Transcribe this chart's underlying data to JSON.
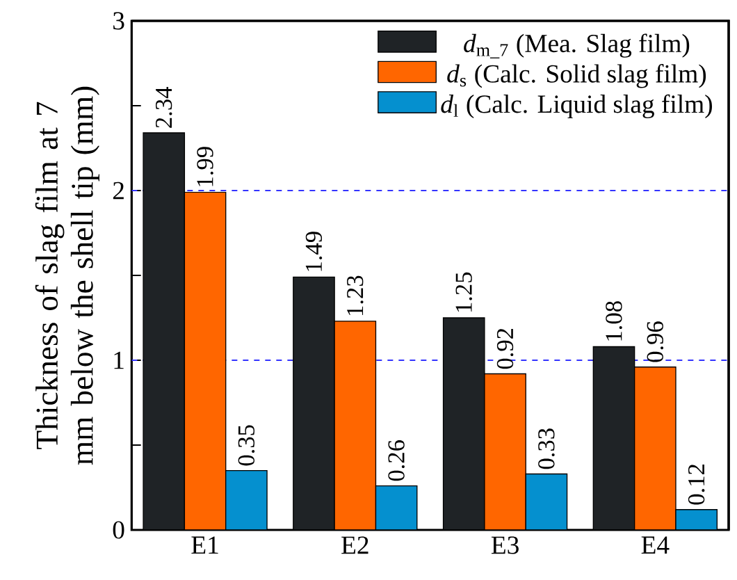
{
  "chart_data": {
    "type": "bar",
    "ylabel": "Thickness of slag film at 7 mm below the shell tip (mm)",
    "categories": [
      "E1",
      "E2",
      "E3",
      "E4"
    ],
    "series": [
      {
        "name": "*d*$_{m_7}$ (Mea. Slag film)",
        "color": "#1f2326",
        "values": [
          2.34,
          1.49,
          1.25,
          1.08
        ],
        "value_labels": [
          "2.34",
          "1.49",
          "1.25",
          "1.08"
        ]
      },
      {
        "name": "*d*$_{s}$ (Calc. Solid slag film)",
        "color": "#ff6600",
        "values": [
          1.99,
          1.23,
          0.92,
          0.96
        ],
        "value_labels": [
          "1.99",
          "1.23",
          "0.92",
          "0.96"
        ]
      },
      {
        "name": "*d*$_{l}$ (Calc. Liquid slag film)",
        "color": "#0590cf",
        "values": [
          0.35,
          0.26,
          0.33,
          0.12
        ],
        "value_labels": [
          "0.35",
          "0.26",
          "0.33",
          "0.12"
        ]
      }
    ],
    "ylim": [
      0,
      3
    ],
    "yticks": [
      0,
      {
        "value": 0.5,
        "label": null
      },
      1,
      {
        "value": 1.5,
        "label": null
      },
      2,
      {
        "value": 2.5,
        "label": null
      },
      3
    ],
    "ref_lines": [
      {
        "axis": "y",
        "value": 1,
        "color": "#3333ff",
        "line_style": "dashed"
      },
      {
        "axis": "y",
        "value": 2,
        "color": "#3333ff",
        "line_style": "dashed"
      }
    ],
    "grid": false,
    "legend": "top right"
  }
}
